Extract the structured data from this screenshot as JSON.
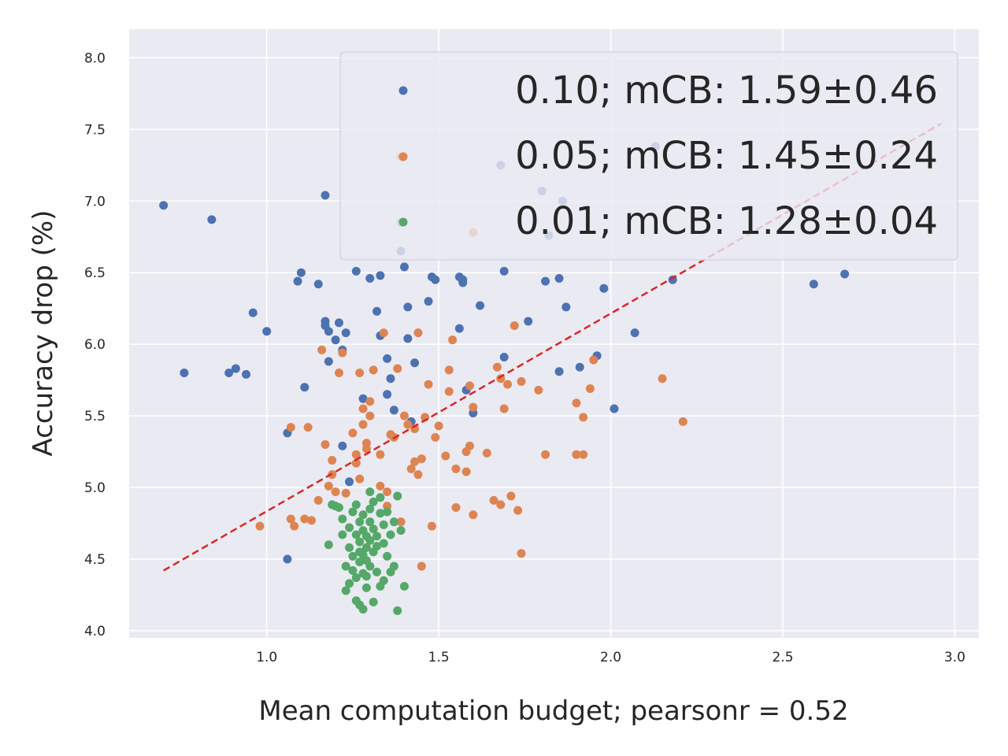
{
  "chart_data": {
    "type": "scatter",
    "title": "",
    "xlabel": "Mean computation budget; pearsonr = 0.52",
    "ylabel": "Accuracy drop (%)",
    "xlim": [
      0.6,
      3.07
    ],
    "ylim": [
      3.95,
      8.2
    ],
    "xticks": [
      1.0,
      1.5,
      2.0,
      2.5,
      3.0
    ],
    "xtick_labels": [
      "1.0",
      "1.5",
      "2.0",
      "2.5",
      "3.0"
    ],
    "yticks": [
      4.0,
      4.5,
      5.0,
      5.5,
      6.0,
      6.5,
      7.0,
      7.5,
      8.0
    ],
    "ytick_labels": [
      "4.0",
      "4.5",
      "5.0",
      "5.5",
      "6.0",
      "6.5",
      "7.0",
      "7.5",
      "8.0"
    ],
    "grid": true,
    "legend_position": "top-right",
    "colors": {
      "background": "#eaeaf2",
      "grid": "#ffffff",
      "fit_line": "#d62728"
    },
    "fit_line": {
      "x": [
        0.7,
        2.96
      ],
      "y": [
        4.42,
        7.54
      ]
    },
    "series": [
      {
        "name": "0.10; mCB: 1.59±0.46",
        "color": "#4c72b0",
        "points": [
          [
            0.7,
            6.97
          ],
          [
            0.76,
            5.8
          ],
          [
            0.84,
            6.87
          ],
          [
            0.89,
            5.8
          ],
          [
            0.91,
            5.83
          ],
          [
            0.94,
            5.79
          ],
          [
            0.96,
            6.22
          ],
          [
            1.0,
            6.09
          ],
          [
            1.06,
            5.38
          ],
          [
            1.06,
            4.5
          ],
          [
            1.09,
            6.44
          ],
          [
            1.1,
            6.5
          ],
          [
            1.11,
            5.7
          ],
          [
            1.15,
            6.42
          ],
          [
            1.17,
            7.04
          ],
          [
            1.17,
            6.13
          ],
          [
            1.17,
            6.16
          ],
          [
            1.18,
            6.09
          ],
          [
            1.18,
            5.88
          ],
          [
            1.2,
            6.03
          ],
          [
            1.21,
            6.15
          ],
          [
            1.22,
            5.96
          ],
          [
            1.22,
            5.29
          ],
          [
            1.23,
            6.08
          ],
          [
            1.24,
            5.04
          ],
          [
            1.26,
            6.51
          ],
          [
            1.28,
            5.62
          ],
          [
            1.3,
            6.46
          ],
          [
            1.32,
            6.23
          ],
          [
            1.33,
            6.06
          ],
          [
            1.33,
            6.48
          ],
          [
            1.35,
            5.9
          ],
          [
            1.35,
            5.65
          ],
          [
            1.36,
            5.76
          ],
          [
            1.37,
            5.54
          ],
          [
            1.39,
            6.65
          ],
          [
            1.4,
            6.54
          ],
          [
            1.41,
            6.26
          ],
          [
            1.41,
            6.04
          ],
          [
            1.42,
            5.46
          ],
          [
            1.43,
            5.87
          ],
          [
            1.47,
            6.3
          ],
          [
            1.48,
            6.47
          ],
          [
            1.49,
            6.45
          ],
          [
            1.56,
            6.47
          ],
          [
            1.56,
            6.11
          ],
          [
            1.57,
            6.43
          ],
          [
            1.57,
            6.45
          ],
          [
            1.58,
            5.68
          ],
          [
            1.6,
            5.52
          ],
          [
            1.62,
            6.27
          ],
          [
            1.69,
            6.51
          ],
          [
            1.69,
            5.91
          ],
          [
            1.76,
            6.16
          ],
          [
            1.81,
            6.44
          ],
          [
            1.82,
            6.76
          ],
          [
            1.85,
            6.46
          ],
          [
            1.85,
            5.81
          ],
          [
            1.87,
            6.26
          ],
          [
            1.91,
            5.84
          ],
          [
            1.96,
            5.92
          ],
          [
            1.98,
            6.39
          ],
          [
            2.01,
            5.55
          ],
          [
            2.07,
            6.08
          ],
          [
            2.13,
            7.38
          ],
          [
            2.18,
            6.45
          ],
          [
            2.59,
            6.42
          ],
          [
            2.68,
            6.49
          ],
          [
            1.8,
            7.07
          ],
          [
            1.68,
            7.25
          ],
          [
            1.86,
            7.0
          ]
        ]
      },
      {
        "name": "0.05; mCB: 1.45±0.24",
        "color": "#dd8452",
        "points": [
          [
            0.98,
            4.73
          ],
          [
            1.07,
            5.42
          ],
          [
            1.07,
            4.78
          ],
          [
            1.08,
            4.73
          ],
          [
            1.11,
            4.78
          ],
          [
            1.12,
            5.42
          ],
          [
            1.13,
            4.77
          ],
          [
            1.15,
            4.91
          ],
          [
            1.16,
            5.96
          ],
          [
            1.17,
            5.3
          ],
          [
            1.18,
            5.01
          ],
          [
            1.19,
            5.19
          ],
          [
            1.19,
            5.09
          ],
          [
            1.2,
            4.97
          ],
          [
            1.21,
            5.8
          ],
          [
            1.22,
            5.94
          ],
          [
            1.23,
            4.96
          ],
          [
            1.25,
            5.38
          ],
          [
            1.26,
            5.23
          ],
          [
            1.26,
            5.17
          ],
          [
            1.27,
            5.06
          ],
          [
            1.27,
            5.8
          ],
          [
            1.28,
            5.55
          ],
          [
            1.29,
            5.27
          ],
          [
            1.29,
            5.31
          ],
          [
            1.3,
            5.5
          ],
          [
            1.3,
            5.6
          ],
          [
            1.31,
            5.82
          ],
          [
            1.33,
            5.01
          ],
          [
            1.33,
            5.23
          ],
          [
            1.34,
            6.08
          ],
          [
            1.35,
            4.87
          ],
          [
            1.36,
            5.37
          ],
          [
            1.37,
            5.35
          ],
          [
            1.38,
            5.83
          ],
          [
            1.39,
            4.76
          ],
          [
            1.4,
            5.5
          ],
          [
            1.41,
            5.44
          ],
          [
            1.42,
            5.13
          ],
          [
            1.43,
            5.18
          ],
          [
            1.43,
            5.41
          ],
          [
            1.44,
            6.08
          ],
          [
            1.44,
            5.09
          ],
          [
            1.45,
            5.2
          ],
          [
            1.45,
            4.45
          ],
          [
            1.46,
            5.49
          ],
          [
            1.47,
            5.72
          ],
          [
            1.48,
            4.73
          ],
          [
            1.49,
            5.35
          ],
          [
            1.5,
            5.43
          ],
          [
            1.52,
            5.22
          ],
          [
            1.53,
            5.82
          ],
          [
            1.53,
            5.67
          ],
          [
            1.54,
            6.03
          ],
          [
            1.55,
            5.13
          ],
          [
            1.55,
            4.86
          ],
          [
            1.58,
            5.11
          ],
          [
            1.58,
            5.25
          ],
          [
            1.59,
            5.71
          ],
          [
            1.59,
            5.29
          ],
          [
            1.6,
            4.81
          ],
          [
            1.6,
            5.56
          ],
          [
            1.64,
            5.24
          ],
          [
            1.66,
            4.91
          ],
          [
            1.67,
            5.84
          ],
          [
            1.68,
            4.88
          ],
          [
            1.68,
            5.76
          ],
          [
            1.69,
            5.55
          ],
          [
            1.7,
            5.72
          ],
          [
            1.71,
            4.94
          ],
          [
            1.72,
            6.13
          ],
          [
            1.73,
            4.84
          ],
          [
            1.74,
            5.74
          ],
          [
            1.74,
            4.54
          ],
          [
            1.79,
            5.68
          ],
          [
            1.81,
            5.23
          ],
          [
            1.9,
            5.59
          ],
          [
            1.9,
            5.23
          ],
          [
            1.92,
            5.23
          ],
          [
            1.92,
            5.49
          ],
          [
            1.94,
            5.69
          ],
          [
            1.95,
            5.89
          ],
          [
            2.15,
            5.76
          ],
          [
            2.21,
            5.46
          ],
          [
            1.39,
            7.31
          ],
          [
            1.6,
            6.78
          ],
          [
            1.28,
            5.44
          ],
          [
            1.35,
            4.97
          ]
        ]
      },
      {
        "name": "0.01; mCB: 1.28±0.04",
        "color": "#55a868",
        "points": [
          [
            1.18,
            4.6
          ],
          [
            1.19,
            4.88
          ],
          [
            1.2,
            4.87
          ],
          [
            1.21,
            4.86
          ],
          [
            1.22,
            4.78
          ],
          [
            1.22,
            4.67
          ],
          [
            1.23,
            4.45
          ],
          [
            1.23,
            4.28
          ],
          [
            1.24,
            4.72
          ],
          [
            1.24,
            4.58
          ],
          [
            1.24,
            4.33
          ],
          [
            1.25,
            4.83
          ],
          [
            1.25,
            4.52
          ],
          [
            1.25,
            4.42
          ],
          [
            1.26,
            4.88
          ],
          [
            1.26,
            4.67
          ],
          [
            1.26,
            4.21
          ],
          [
            1.26,
            4.37
          ],
          [
            1.27,
            4.76
          ],
          [
            1.27,
            4.62
          ],
          [
            1.27,
            4.55
          ],
          [
            1.27,
            4.48
          ],
          [
            1.27,
            4.18
          ],
          [
            1.28,
            4.81
          ],
          [
            1.28,
            4.7
          ],
          [
            1.28,
            4.53
          ],
          [
            1.28,
            4.4
          ],
          [
            1.28,
            4.15
          ],
          [
            1.29,
            4.66
          ],
          [
            1.29,
            4.58
          ],
          [
            1.29,
            4.49
          ],
          [
            1.29,
            4.38
          ],
          [
            1.3,
            4.85
          ],
          [
            1.3,
            4.76
          ],
          [
            1.3,
            4.63
          ],
          [
            1.3,
            4.97
          ],
          [
            1.3,
            4.45
          ],
          [
            1.31,
            4.9
          ],
          [
            1.31,
            4.71
          ],
          [
            1.31,
            4.55
          ],
          [
            1.31,
            4.2
          ],
          [
            1.32,
            4.66
          ],
          [
            1.32,
            4.59
          ],
          [
            1.32,
            4.41
          ],
          [
            1.33,
            4.93
          ],
          [
            1.33,
            4.82
          ],
          [
            1.33,
            4.31
          ],
          [
            1.34,
            4.74
          ],
          [
            1.34,
            4.61
          ],
          [
            1.34,
            4.35
          ],
          [
            1.35,
            4.83
          ],
          [
            1.35,
            4.52
          ],
          [
            1.36,
            4.67
          ],
          [
            1.36,
            4.41
          ],
          [
            1.37,
            4.45
          ],
          [
            1.37,
            4.76
          ],
          [
            1.38,
            4.94
          ],
          [
            1.38,
            4.14
          ],
          [
            1.39,
            4.7
          ],
          [
            1.4,
            4.31
          ],
          [
            1.39,
            6.85
          ],
          [
            1.29,
            4.3
          ]
        ]
      }
    ]
  }
}
